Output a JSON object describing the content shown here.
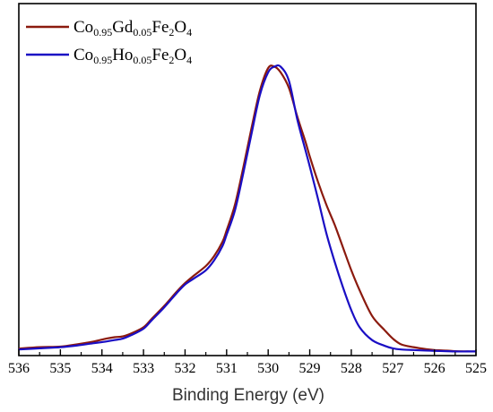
{
  "chart_data": {
    "type": "line",
    "xlabel": "Binding Energy (eV)",
    "ylabel": "",
    "xlim": [
      536,
      525
    ],
    "x_reversed": true,
    "y_ticks_shown": false,
    "ylim": [
      0,
      1.05
    ],
    "grid": false,
    "legend_position": "top-left",
    "x_ticks": [
      536,
      535,
      534,
      533,
      532,
      531,
      530,
      529,
      528,
      527,
      526,
      525
    ],
    "series": [
      {
        "name": "Co0.95Gd0.05Fe2O4",
        "legend_parts": [
          [
            "Co",
            "n"
          ],
          [
            "0.95",
            "s"
          ],
          [
            "Gd",
            "n"
          ],
          [
            "0.05",
            "s"
          ],
          [
            "Fe",
            "n"
          ],
          [
            "2",
            "s"
          ],
          [
            "O",
            "n"
          ],
          [
            "4",
            "s"
          ]
        ],
        "color": "#8b1a0e",
        "x": [
          536.0,
          535.5,
          535.0,
          534.6,
          534.2,
          533.9,
          533.7,
          533.5,
          533.3,
          533.0,
          532.8,
          532.5,
          532.2,
          532.0,
          531.8,
          531.5,
          531.3,
          531.1,
          531.0,
          530.8,
          530.6,
          530.4,
          530.2,
          530.0,
          529.85,
          529.7,
          529.5,
          529.3,
          529.1,
          529.0,
          528.8,
          528.6,
          528.4,
          528.2,
          528.0,
          527.8,
          527.5,
          527.2,
          527.0,
          526.8,
          526.5,
          526.2,
          526.0,
          525.7,
          525.5,
          525.2,
          525.0
        ],
        "y": [
          0.015,
          0.02,
          0.022,
          0.03,
          0.04,
          0.05,
          0.055,
          0.058,
          0.068,
          0.09,
          0.12,
          0.165,
          0.215,
          0.245,
          0.27,
          0.305,
          0.34,
          0.39,
          0.43,
          0.52,
          0.65,
          0.79,
          0.92,
          1.0,
          1.005,
          0.985,
          0.93,
          0.83,
          0.74,
          0.69,
          0.6,
          0.52,
          0.45,
          0.37,
          0.29,
          0.22,
          0.13,
          0.08,
          0.05,
          0.03,
          0.02,
          0.013,
          0.01,
          0.008,
          0.006,
          0.005,
          0.005
        ]
      },
      {
        "name": "Co0.95Ho0.05Fe2O4",
        "legend_parts": [
          [
            "Co",
            "n"
          ],
          [
            "0.95",
            "s"
          ],
          [
            "Ho",
            "n"
          ],
          [
            "0.05",
            "s"
          ],
          [
            "Fe",
            "n"
          ],
          [
            "2",
            "s"
          ],
          [
            "O",
            "n"
          ],
          [
            "4",
            "s"
          ]
        ],
        "color": "#1a0ec4",
        "x": [
          536.0,
          535.5,
          535.0,
          534.6,
          534.2,
          533.9,
          533.7,
          533.5,
          533.3,
          533.0,
          532.8,
          532.5,
          532.2,
          532.0,
          531.8,
          531.5,
          531.3,
          531.1,
          531.0,
          530.8,
          530.6,
          530.4,
          530.2,
          530.0,
          529.85,
          529.7,
          529.5,
          529.3,
          529.1,
          529.0,
          528.8,
          528.6,
          528.4,
          528.2,
          528.0,
          527.8,
          527.5,
          527.2,
          527.0,
          526.8,
          526.5,
          526.2,
          526.0,
          525.7,
          525.5,
          525.2,
          525.0
        ],
        "y": [
          0.012,
          0.016,
          0.02,
          0.026,
          0.034,
          0.04,
          0.045,
          0.05,
          0.062,
          0.085,
          0.115,
          0.16,
          0.21,
          0.24,
          0.26,
          0.29,
          0.325,
          0.375,
          0.415,
          0.5,
          0.63,
          0.77,
          0.905,
          0.985,
          1.005,
          1.005,
          0.955,
          0.82,
          0.71,
          0.655,
          0.54,
          0.42,
          0.32,
          0.23,
          0.15,
          0.09,
          0.045,
          0.025,
          0.016,
          0.012,
          0.01,
          0.008,
          0.007,
          0.006,
          0.005,
          0.005,
          0.005
        ]
      }
    ]
  }
}
